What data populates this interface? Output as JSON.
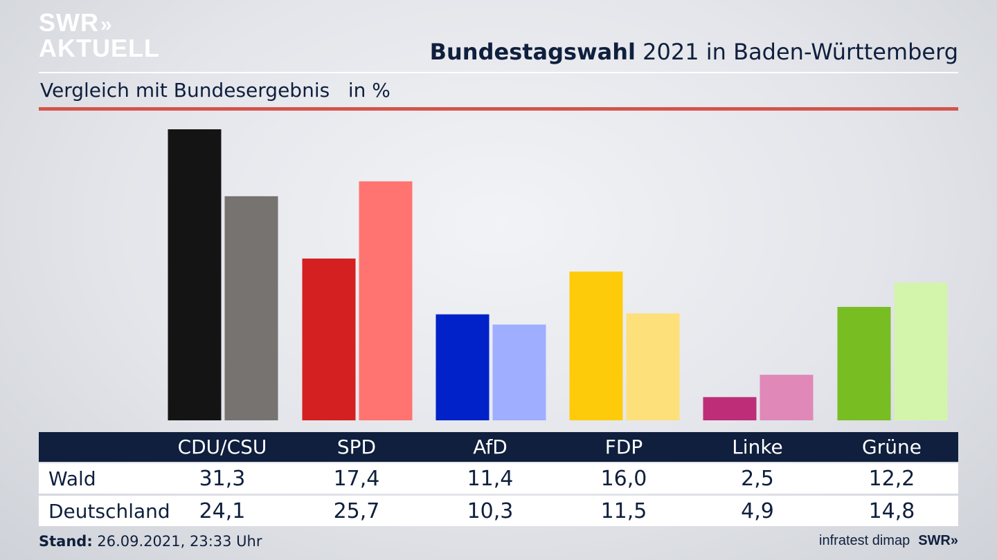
{
  "header": {
    "logo_line1": "SWR",
    "logo_line1_chevrons": "»",
    "logo_line2": "AKTUELL",
    "title_bold": "Bundestagswahl",
    "title_rest": " 2021 in Baden-Württemberg",
    "subtitle": "Vergleich mit Bundesergebnis   in %"
  },
  "chart_data": {
    "type": "bar",
    "categories": [
      "CDU/CSU",
      "SPD",
      "AfD",
      "FDP",
      "Linke",
      "Grüne"
    ],
    "series": [
      {
        "name": "Wald",
        "values": [
          31.3,
          17.4,
          11.4,
          16.0,
          2.5,
          12.2
        ]
      },
      {
        "name": "Deutschland",
        "values": [
          24.1,
          25.7,
          10.3,
          11.5,
          4.9,
          14.8
        ]
      }
    ],
    "value_labels": {
      "Wald": [
        "31,3",
        "17,4",
        "11,4",
        "16,0",
        "2,5",
        "12,2"
      ],
      "Deutschland": [
        "24,1",
        "25,7",
        "10,3",
        "11,5",
        "4,9",
        "14,8"
      ]
    },
    "colors": {
      "Wald": [
        "#141414",
        "#d42020",
        "#0022c8",
        "#fecb0a",
        "#be2e78",
        "#78bd22"
      ],
      "Deutschland": [
        "#767370",
        "#ff7470",
        "#9faeff",
        "#fde07a",
        "#e088b8",
        "#d3f5ab"
      ]
    },
    "ylim": [
      0,
      31.3
    ],
    "grid": false
  },
  "table": {
    "row_labels": [
      "Wald",
      "Deutschland"
    ]
  },
  "footer": {
    "stand_label": "Stand:",
    "stand_value": " 26.09.2021, 23:33 Uhr",
    "source": "infratest dimap",
    "brand": "SWR",
    "brand_chevrons": "»"
  }
}
